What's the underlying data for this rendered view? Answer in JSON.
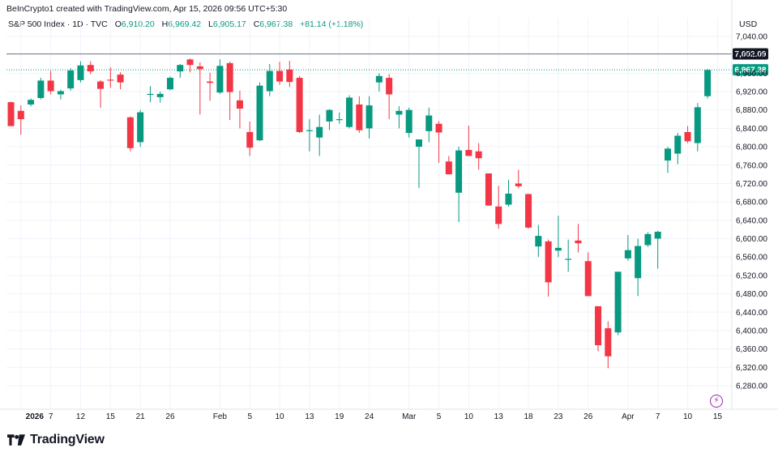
{
  "caption": "BeInCrypto1 created with TradingView.com, Apr 15, 2026 09:56 UTC+5:30",
  "legend": {
    "symbol": "S&P 500 Index · 1D · TVC",
    "open_label": "O",
    "open": "6,910.20",
    "high_label": "H",
    "high": "6,969.42",
    "low_label": "L",
    "low": "6,905.17",
    "close_label": "C",
    "close": "6,967.38",
    "change": "+81.14 (+1.18%)"
  },
  "currency": "USD",
  "brand": "TradingView",
  "colors": {
    "up": "#089981",
    "down": "#f23645",
    "grid": "#f0f3fa",
    "axis_text": "#131722",
    "price_badge": "#089981",
    "line_badge": "#131722"
  },
  "icons": {
    "logo": "tradingview-logo-icon",
    "alert": "lightning-icon"
  },
  "chart_data": {
    "type": "candlestick",
    "ylim": [
      6250,
      7070
    ],
    "y_ticks": [
      7040,
      7000,
      6960,
      6920,
      6880,
      6840,
      6800,
      6760,
      6720,
      6680,
      6640,
      6600,
      6560,
      6520,
      6480,
      6440,
      6400,
      6360,
      6320,
      6280
    ],
    "y_tick_labels": [
      "7,040.00",
      "7,000.00",
      "6,960.00",
      "6,920.00",
      "6,880.00",
      "6,840.00",
      "6,800.00",
      "6,760.00",
      "6,720.00",
      "6,680.00",
      "6,640.00",
      "6,600.00",
      "6,560.00",
      "6,520.00",
      "6,480.00",
      "6,440.00",
      "6,400.00",
      "6,360.00",
      "6,320.00",
      "6,280.00"
    ],
    "x_ticks": [
      {
        "date": "2026-01-02",
        "label": "2026",
        "bold": true
      },
      {
        "date": "2026-01-07",
        "label": "7"
      },
      {
        "date": "2026-01-12",
        "label": "12"
      },
      {
        "date": "2026-01-15",
        "label": "15"
      },
      {
        "date": "2026-01-21",
        "label": "21"
      },
      {
        "date": "2026-01-26",
        "label": "26"
      },
      {
        "date": "2026-02-02",
        "label": "Feb"
      },
      {
        "date": "2026-02-05",
        "label": "5"
      },
      {
        "date": "2026-02-10",
        "label": "10"
      },
      {
        "date": "2026-02-13",
        "label": "13"
      },
      {
        "date": "2026-02-19",
        "label": "19"
      },
      {
        "date": "2026-02-24",
        "label": "24"
      },
      {
        "date": "2026-03-02",
        "label": "Mar"
      },
      {
        "date": "2026-03-05",
        "label": "5"
      },
      {
        "date": "2026-03-10",
        "label": "10"
      },
      {
        "date": "2026-03-13",
        "label": "13"
      },
      {
        "date": "2026-03-18",
        "label": "18"
      },
      {
        "date": "2026-03-23",
        "label": "23"
      },
      {
        "date": "2026-03-26",
        "label": "26"
      },
      {
        "date": "2026-04-01",
        "label": "Apr"
      },
      {
        "date": "2026-04-07",
        "label": "7"
      },
      {
        "date": "2026-04-10",
        "label": "10"
      },
      {
        "date": "2026-04-15",
        "label": "15"
      }
    ],
    "horizontal_line": {
      "value": 7002.09,
      "label": "7,002.09"
    },
    "last_price": {
      "value": 6967.38,
      "label": "6,967.38"
    },
    "candles": [
      {
        "date": "2025-12-31",
        "o": 6897,
        "h": 6898,
        "l": 6845,
        "c": 6845
      },
      {
        "date": "2026-01-02",
        "o": 6878,
        "h": 6890,
        "l": 6826,
        "c": 6860
      },
      {
        "date": "2026-01-05",
        "o": 6892,
        "h": 6905,
        "l": 6888,
        "c": 6902
      },
      {
        "date": "2026-01-06",
        "o": 6906,
        "h": 6950,
        "l": 6903,
        "c": 6944
      },
      {
        "date": "2026-01-07",
        "o": 6944,
        "h": 6965,
        "l": 6914,
        "c": 6921
      },
      {
        "date": "2026-01-08",
        "o": 6914,
        "h": 6924,
        "l": 6903,
        "c": 6921
      },
      {
        "date": "2026-01-09",
        "o": 6927,
        "h": 6971,
        "l": 6922,
        "c": 6966
      },
      {
        "date": "2026-01-12",
        "o": 6945,
        "h": 6986,
        "l": 6940,
        "c": 6977
      },
      {
        "date": "2026-01-13",
        "o": 6978,
        "h": 6986,
        "l": 6958,
        "c": 6964
      },
      {
        "date": "2026-01-14",
        "o": 6942,
        "h": 6945,
        "l": 6885,
        "c": 6926
      },
      {
        "date": "2026-01-15",
        "o": 6946,
        "h": 6973,
        "l": 6928,
        "c": 6944
      },
      {
        "date": "2026-01-16",
        "o": 6957,
        "h": 6962,
        "l": 6925,
        "c": 6940
      },
      {
        "date": "2026-01-20",
        "o": 6864,
        "h": 6866,
        "l": 6790,
        "c": 6797
      },
      {
        "date": "2026-01-21",
        "o": 6810,
        "h": 6880,
        "l": 6800,
        "c": 6875
      },
      {
        "date": "2026-01-22",
        "o": 6913,
        "h": 6932,
        "l": 6897,
        "c": 6915
      },
      {
        "date": "2026-01-23",
        "o": 6908,
        "h": 6920,
        "l": 6896,
        "c": 6915
      },
      {
        "date": "2026-01-26",
        "o": 6925,
        "h": 6953,
        "l": 6923,
        "c": 6950
      },
      {
        "date": "2026-01-27",
        "o": 6964,
        "h": 6980,
        "l": 6950,
        "c": 6978
      },
      {
        "date": "2026-01-28",
        "o": 6990,
        "h": 6992,
        "l": 6962,
        "c": 6978
      },
      {
        "date": "2026-01-29",
        "o": 6975,
        "h": 6984,
        "l": 6870,
        "c": 6969
      },
      {
        "date": "2026-01-30",
        "o": 6942,
        "h": 6961,
        "l": 6900,
        "c": 6939
      },
      {
        "date": "2026-02-02",
        "o": 6918,
        "h": 6990,
        "l": 6915,
        "c": 6976
      },
      {
        "date": "2026-02-03",
        "o": 6982,
        "h": 6985,
        "l": 6858,
        "c": 6919
      },
      {
        "date": "2026-02-04",
        "o": 6901,
        "h": 6922,
        "l": 6840,
        "c": 6883
      },
      {
        "date": "2026-02-05",
        "o": 6832,
        "h": 6855,
        "l": 6780,
        "c": 6798
      },
      {
        "date": "2026-02-06",
        "o": 6814,
        "h": 6940,
        "l": 6812,
        "c": 6933
      },
      {
        "date": "2026-02-09",
        "o": 6921,
        "h": 6980,
        "l": 6910,
        "c": 6965
      },
      {
        "date": "2026-02-10",
        "o": 6965,
        "h": 6985,
        "l": 6935,
        "c": 6942
      },
      {
        "date": "2026-02-11",
        "o": 6968,
        "h": 6987,
        "l": 6930,
        "c": 6941
      },
      {
        "date": "2026-02-12",
        "o": 6950,
        "h": 6954,
        "l": 6830,
        "c": 6832
      },
      {
        "date": "2026-02-13",
        "o": 6834,
        "h": 6860,
        "l": 6790,
        "c": 6836
      },
      {
        "date": "2026-02-17",
        "o": 6820,
        "h": 6870,
        "l": 6780,
        "c": 6843
      },
      {
        "date": "2026-02-18",
        "o": 6855,
        "h": 6882,
        "l": 6836,
        "c": 6880
      },
      {
        "date": "2026-02-19",
        "o": 6860,
        "h": 6875,
        "l": 6850,
        "c": 6860
      },
      {
        "date": "2026-02-20",
        "o": 6843,
        "h": 6912,
        "l": 6840,
        "c": 6907
      },
      {
        "date": "2026-02-23",
        "o": 6892,
        "h": 6910,
        "l": 6830,
        "c": 6836
      },
      {
        "date": "2026-02-24",
        "o": 6840,
        "h": 6910,
        "l": 6818,
        "c": 6890
      },
      {
        "date": "2026-02-25",
        "o": 6940,
        "h": 6960,
        "l": 6920,
        "c": 6954
      },
      {
        "date": "2026-02-26",
        "o": 6950,
        "h": 6958,
        "l": 6860,
        "c": 6914
      },
      {
        "date": "2026-02-27",
        "o": 6870,
        "h": 6888,
        "l": 6840,
        "c": 6878
      },
      {
        "date": "2026-03-02",
        "o": 6830,
        "h": 6885,
        "l": 6820,
        "c": 6880
      },
      {
        "date": "2026-03-03",
        "o": 6800,
        "h": 6815,
        "l": 6710,
        "c": 6816
      },
      {
        "date": "2026-03-04",
        "o": 6834,
        "h": 6885,
        "l": 6810,
        "c": 6868
      },
      {
        "date": "2026-03-05",
        "o": 6850,
        "h": 6856,
        "l": 6765,
        "c": 6831
      },
      {
        "date": "2026-03-06",
        "o": 6768,
        "h": 6780,
        "l": 6740,
        "c": 6740
      },
      {
        "date": "2026-03-09",
        "o": 6700,
        "h": 6800,
        "l": 6636,
        "c": 6792
      },
      {
        "date": "2026-03-10",
        "o": 6793,
        "h": 6846,
        "l": 6780,
        "c": 6780
      },
      {
        "date": "2026-03-11",
        "o": 6790,
        "h": 6808,
        "l": 6750,
        "c": 6775
      },
      {
        "date": "2026-03-12",
        "o": 6742,
        "h": 6742,
        "l": 6672,
        "c": 6672
      },
      {
        "date": "2026-03-13",
        "o": 6670,
        "h": 6715,
        "l": 6622,
        "c": 6632
      },
      {
        "date": "2026-03-16",
        "o": 6674,
        "h": 6728,
        "l": 6670,
        "c": 6698
      },
      {
        "date": "2026-03-17",
        "o": 6720,
        "h": 6750,
        "l": 6710,
        "c": 6714
      },
      {
        "date": "2026-03-18",
        "o": 6697,
        "h": 6698,
        "l": 6622,
        "c": 6624
      },
      {
        "date": "2026-03-19",
        "o": 6583,
        "h": 6630,
        "l": 6560,
        "c": 6606
      },
      {
        "date": "2026-03-20",
        "o": 6594,
        "h": 6598,
        "l": 6474,
        "c": 6505
      },
      {
        "date": "2026-03-23",
        "o": 6574,
        "h": 6650,
        "l": 6560,
        "c": 6580
      },
      {
        "date": "2026-03-24",
        "o": 6554,
        "h": 6598,
        "l": 6528,
        "c": 6556
      },
      {
        "date": "2026-03-25",
        "o": 6596,
        "h": 6632,
        "l": 6570,
        "c": 6590
      },
      {
        "date": "2026-03-26",
        "o": 6551,
        "h": 6570,
        "l": 6475,
        "c": 6475
      },
      {
        "date": "2026-03-27",
        "o": 6453,
        "h": 6453,
        "l": 6355,
        "c": 6368
      },
      {
        "date": "2026-03-30",
        "o": 6405,
        "h": 6420,
        "l": 6318,
        "c": 6344
      },
      {
        "date": "2026-03-31",
        "o": 6396,
        "h": 6528,
        "l": 6390,
        "c": 6528
      },
      {
        "date": "2026-04-01",
        "o": 6557,
        "h": 6608,
        "l": 6552,
        "c": 6575
      },
      {
        "date": "2026-04-02",
        "o": 6514,
        "h": 6600,
        "l": 6475,
        "c": 6584
      },
      {
        "date": "2026-04-06",
        "o": 6586,
        "h": 6614,
        "l": 6582,
        "c": 6610
      },
      {
        "date": "2026-04-07",
        "o": 6600,
        "h": 6617,
        "l": 6535,
        "c": 6615
      },
      {
        "date": "2026-04-08",
        "o": 6770,
        "h": 6800,
        "l": 6743,
        "c": 6796
      },
      {
        "date": "2026-04-09",
        "o": 6785,
        "h": 6830,
        "l": 6762,
        "c": 6824
      },
      {
        "date": "2026-04-10",
        "o": 6832,
        "h": 6845,
        "l": 6808,
        "c": 6812
      },
      {
        "date": "2026-04-13",
        "o": 6808,
        "h": 6895,
        "l": 6790,
        "c": 6886
      },
      {
        "date": "2026-04-14",
        "o": 6910,
        "h": 6969,
        "l": 6905,
        "c": 6967
      }
    ]
  }
}
